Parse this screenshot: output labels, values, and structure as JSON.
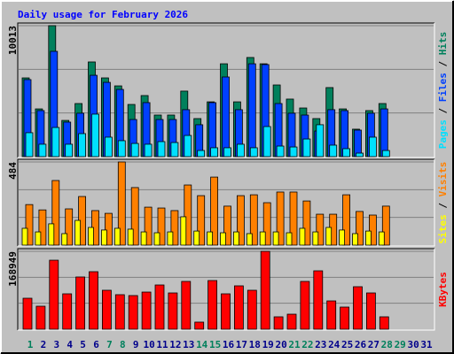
{
  "title": "Daily usage for February 2026",
  "legend_separator": " / ",
  "chart_data": [
    {
      "type": "bar",
      "ylim": [
        0,
        10013
      ],
      "yticks": [
        10013
      ],
      "grid": true,
      "series": [
        {
          "name": "Hits",
          "color": "#00805c",
          "values": [
            6020,
            3650,
            10013,
            2770,
            4060,
            7240,
            6020,
            5410,
            3990,
            4670,
            3180,
            3180,
            5010,
            2910,
            4190,
            7100,
            4190,
            7580,
            7100,
            5480,
            4400,
            3720,
            2910,
            5280,
            3650,
            2100,
            3520,
            4060,
            null,
            null,
            null
          ]
        },
        {
          "name": "Files",
          "color": "#0040ff",
          "values": [
            5890,
            3520,
            8050,
            2640,
            3320,
            6220,
            5680,
            5140,
            2840,
            4130,
            2840,
            2840,
            3590,
            2440,
            4130,
            6090,
            3590,
            7100,
            7040,
            4060,
            3320,
            3180,
            1960,
            3590,
            3520,
            2030,
            3320,
            3650,
            null,
            null,
            null
          ]
        },
        {
          "name": "Pages",
          "color": "#00e0ff",
          "values": [
            1830,
            950,
            2230,
            950,
            1760,
            3250,
            1490,
            1220,
            1010,
            950,
            1150,
            1080,
            1620,
            470,
            680,
            680,
            950,
            680,
            2300,
            810,
            740,
            1350,
            2440,
            880,
            610,
            270,
            1490,
            470,
            null,
            null,
            null
          ]
        }
      ]
    },
    {
      "type": "bar",
      "ylim": [
        0,
        484
      ],
      "yticks": [
        484
      ],
      "grid": true,
      "series": [
        {
          "name": "Visits",
          "color": "#ff8000",
          "values": [
            236,
            205,
            376,
            211,
            283,
            201,
            185,
            484,
            335,
            221,
            216,
            201,
            350,
            288,
            396,
            227,
            288,
            293,
            247,
            309,
            309,
            257,
            180,
            180,
            293,
            196,
            175,
            227,
            null,
            null,
            null
          ]
        },
        {
          "name": "Sites",
          "color": "#ffff00",
          "values": [
            98,
            77,
            124,
            67,
            144,
            103,
            88,
            98,
            93,
            77,
            72,
            77,
            165,
            82,
            77,
            72,
            77,
            67,
            77,
            77,
            72,
            98,
            77,
            103,
            88,
            67,
            82,
            77,
            null,
            null,
            null
          ]
        }
      ]
    },
    {
      "type": "bar",
      "ylim": [
        0,
        168949
      ],
      "yticks": [
        168949
      ],
      "grid": true,
      "series": [
        {
          "name": "KBytes",
          "color": "#ff0000",
          "values": [
            67200,
            49900,
            149700,
            76800,
            113300,
            124800,
            84500,
            74900,
            73000,
            80600,
            96000,
            78700,
            103700,
            15400,
            105600,
            76800,
            94100,
            84500,
            168949,
            26900,
            32600,
            103700,
            126700,
            61400,
            48000,
            92200,
            78700,
            26900,
            null,
            null,
            null
          ]
        }
      ],
      "categories": [
        "1",
        "2",
        "3",
        "4",
        "5",
        "6",
        "7",
        "8",
        "9",
        "10",
        "11",
        "12",
        "13",
        "14",
        "15",
        "16",
        "17",
        "18",
        "19",
        "20",
        "21",
        "22",
        "23",
        "24",
        "25",
        "26",
        "27",
        "28",
        "29",
        "30",
        "31"
      ],
      "category_colors": [
        "#00805c",
        "#00008b",
        "#00008b",
        "#00008b",
        "#00008b",
        "#00008b",
        "#00805c",
        "#00805c",
        "#00008b",
        "#00008b",
        "#00008b",
        "#00008b",
        "#00008b",
        "#00805c",
        "#00805c",
        "#00008b",
        "#00008b",
        "#00008b",
        "#00008b",
        "#00008b",
        "#00805c",
        "#00805c",
        "#00008b",
        "#00008b",
        "#00008b",
        "#00008b",
        "#00008b",
        "#00805c",
        "#00805c",
        "#00008b",
        "#00008b"
      ]
    }
  ]
}
